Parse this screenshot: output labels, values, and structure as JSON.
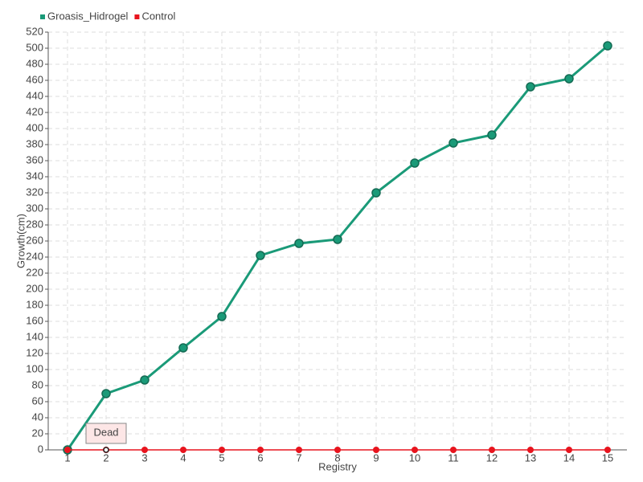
{
  "chart_data": {
    "type": "line",
    "x_label": "Registry",
    "y_label": "Growth(cm)",
    "categories": [
      "1",
      "2",
      "3",
      "4",
      "5",
      "6",
      "7",
      "8",
      "9",
      "10",
      "11",
      "12",
      "13",
      "14",
      "15"
    ],
    "series": [
      {
        "name": "Groasis_Hidrogel",
        "color": "#1a9a78",
        "values": [
          0,
          70,
          87,
          127,
          166,
          242,
          257,
          262,
          320,
          357,
          382,
          392,
          452,
          462,
          503
        ]
      },
      {
        "name": "Control",
        "color": "#e8141e",
        "values": [
          0,
          0,
          0,
          0,
          0,
          0,
          0,
          0,
          0,
          0,
          0,
          0,
          0,
          0,
          0
        ]
      }
    ],
    "annotation": "Dead",
    "ylim": [
      0,
      520
    ],
    "yticks": [
      0,
      20,
      40,
      60,
      80,
      100,
      120,
      140,
      160,
      180,
      200,
      220,
      240,
      260,
      280,
      300,
      320,
      340,
      360,
      380,
      400,
      420,
      440,
      460,
      480,
      500,
      520
    ],
    "grid": true,
    "legend": "top-left"
  }
}
